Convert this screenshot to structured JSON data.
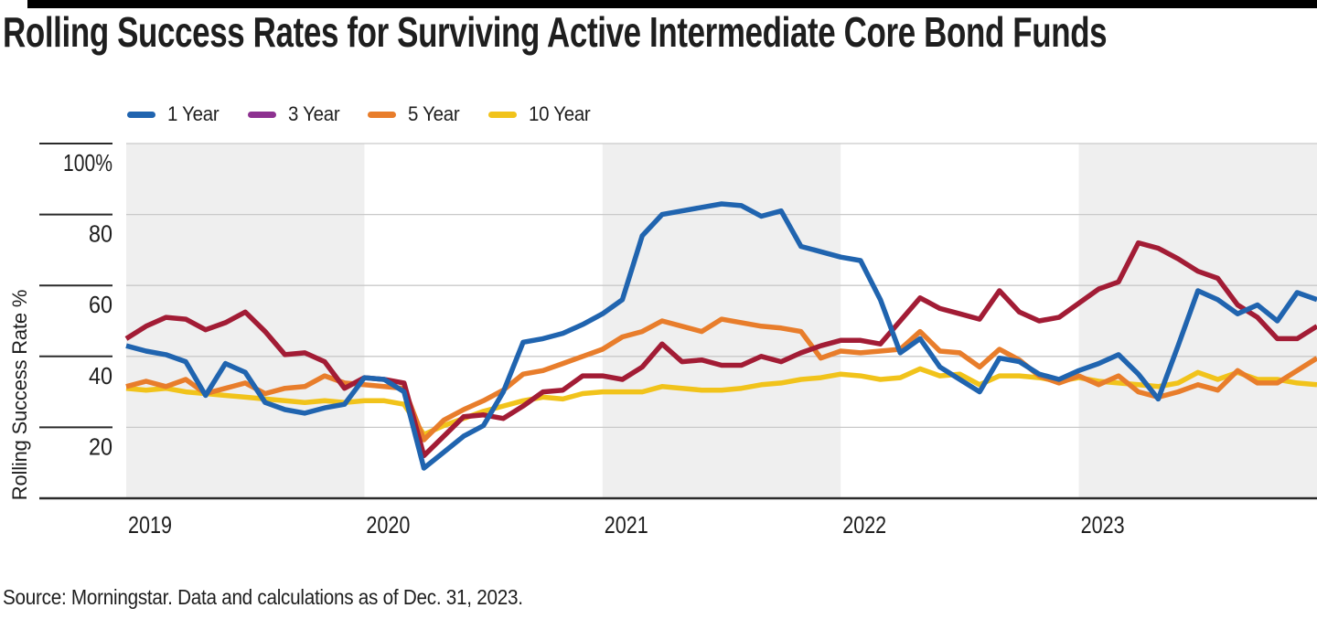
{
  "header": {
    "title": "Rolling Success Rates for Surviving Active Intermediate Core Bond Funds"
  },
  "source": "Source: Morningstar. Data and calculations as of Dec. 31, 2023.",
  "legend": {
    "items": [
      {
        "label": "1 Year",
        "swatch_color": "#2064af"
      },
      {
        "label": "3 Year",
        "swatch_color": "#8d3190"
      },
      {
        "label": "5 Year",
        "swatch_color": "#e87d2b"
      },
      {
        "label": "10 Year",
        "swatch_color": "#f1c31b"
      }
    ]
  },
  "chart_data": {
    "type": "line",
    "title": "Rolling Success Rates for Surviving Active Intermediate Core Bond Funds",
    "xlabel": "",
    "ylabel": "Rolling Success Rate %",
    "ylim": [
      0,
      100
    ],
    "grid": true,
    "legend_position": "top-left",
    "x_frequency": "monthly",
    "x_range": "Dec 2018 - Dec 2023",
    "x_tick_labels": [
      "2019",
      "2020",
      "2021",
      "2022",
      "2023"
    ],
    "y_tick_labels": [
      "100%",
      "80",
      "60",
      "40",
      "20"
    ],
    "background_bands": {
      "color": "#efefef",
      "years_shaded": [
        "2019",
        "2021",
        "2023"
      ]
    },
    "series": [
      {
        "name": "1 Year",
        "color": "#2064af",
        "values": [
          43,
          41.5,
          40.5,
          38.5,
          29,
          38,
          35.5,
          27,
          25,
          24,
          25.5,
          26.5,
          34,
          33.5,
          30,
          8.5,
          13,
          17.5,
          20.5,
          30,
          44,
          45,
          46.5,
          49,
          52,
          56,
          74,
          80,
          81,
          82,
          83,
          82.5,
          79.5,
          81,
          71,
          69.5,
          68,
          67,
          56,
          41,
          45,
          37,
          33.5,
          30,
          39.5,
          38.5,
          35,
          33.5,
          36,
          38,
          40.5,
          35,
          28,
          43,
          58.5,
          56,
          52,
          54.5,
          50,
          58,
          56
        ]
      },
      {
        "name": "3 Year",
        "color": "#a21c35",
        "legend_swatch_color": "#8d3190",
        "values": [
          45,
          48.5,
          51,
          50.5,
          47.5,
          49.5,
          52.5,
          47,
          40.5,
          41,
          38.5,
          31,
          34,
          33.5,
          32.5,
          12,
          17.5,
          23,
          23.5,
          22.5,
          26,
          30,
          30.5,
          34.5,
          34.5,
          33.5,
          37,
          43.5,
          38.5,
          39,
          37.5,
          37.5,
          40,
          38.5,
          41,
          43,
          44.5,
          44.5,
          43.5,
          50,
          56.5,
          53.5,
          52,
          50.5,
          58.5,
          52.5,
          50,
          51,
          55,
          59,
          61,
          72,
          70.5,
          67.5,
          64,
          62,
          54.5,
          51,
          45,
          45,
          48.5
        ]
      },
      {
        "name": "5 Year",
        "color": "#e87d2b",
        "values": [
          31.5,
          33,
          31.5,
          33.5,
          29.5,
          31,
          32.5,
          29.5,
          31,
          31.5,
          34.5,
          32.5,
          32,
          31.5,
          31,
          16.5,
          22,
          25,
          27.5,
          30.5,
          35,
          36,
          38,
          40,
          42,
          45.5,
          47,
          50,
          48.5,
          47,
          50.5,
          49.5,
          48.5,
          48,
          47,
          39.5,
          41.5,
          41,
          41.5,
          42,
          47,
          41.5,
          41,
          37,
          42,
          39,
          34.5,
          32.5,
          34.5,
          32,
          34.5,
          30,
          28.5,
          30,
          32,
          30.5,
          36,
          32.5,
          32.5,
          36,
          39.5
        ]
      },
      {
        "name": "10 Year",
        "color": "#f1c31b",
        "values": [
          31,
          30.5,
          31,
          30,
          29.5,
          29,
          28.5,
          28,
          27.5,
          27,
          27.5,
          27,
          27.5,
          27.5,
          26.5,
          18,
          20.5,
          22.5,
          24.5,
          26,
          27.5,
          28.5,
          28,
          29.5,
          30,
          30,
          30,
          31.5,
          31,
          30.5,
          30.5,
          31,
          32,
          32.5,
          33.5,
          34,
          35,
          34.5,
          33.5,
          34,
          36.5,
          34.5,
          35,
          32,
          34.5,
          34.5,
          34,
          33,
          34,
          33,
          32.5,
          32,
          31.5,
          32.5,
          35.5,
          33.5,
          35.5,
          33.5,
          33.5,
          32.5,
          32
        ]
      }
    ]
  },
  "style": {
    "accent_bar_color": "#000000",
    "text_color": "#1e1e1e",
    "axis_line_color": "#2a2a2a",
    "gridline_color": "#c9c9c9",
    "band_color": "#efefef"
  }
}
